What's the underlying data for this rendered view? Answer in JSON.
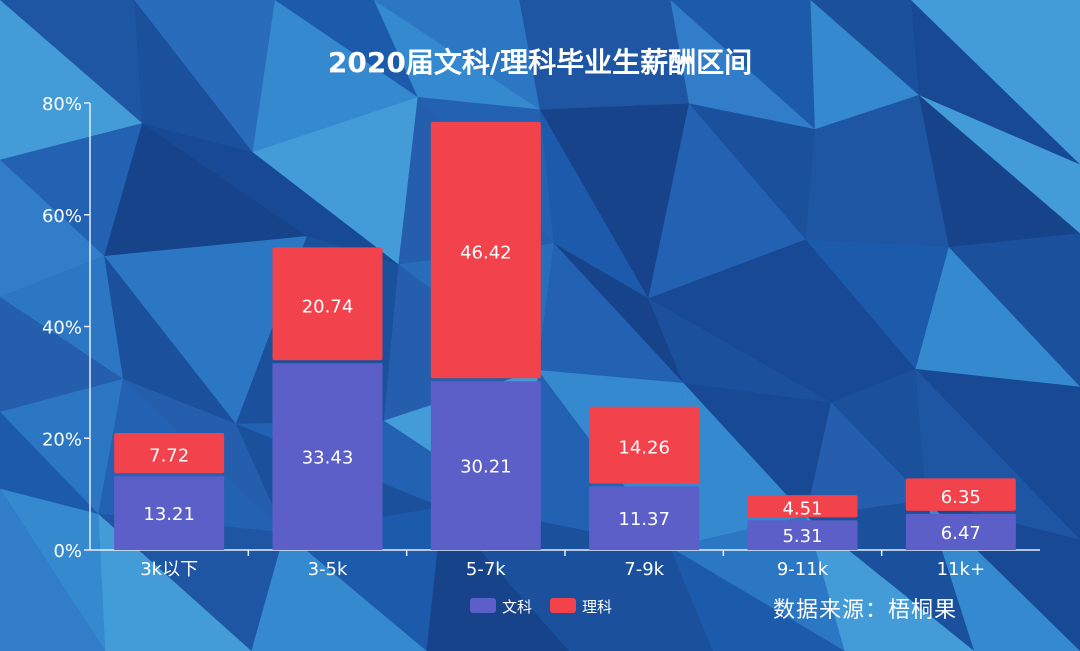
{
  "chart_data": {
    "type": "bar",
    "stacked": true,
    "title": "2020届文科/理科毕业生薪酬区间",
    "categories": [
      "3k以下",
      "3-5k",
      "5-7k",
      "7-9k",
      "9-11k",
      "11k+"
    ],
    "series": [
      {
        "name": "文科",
        "values": [
          13.21,
          33.43,
          30.21,
          11.37,
          5.31,
          6.47
        ],
        "color": "#5b5fc7"
      },
      {
        "name": "理科",
        "values": [
          7.72,
          20.74,
          46.42,
          14.26,
          4.51,
          6.35
        ],
        "color": "#f2424b"
      }
    ],
    "yticks": [
      "0%",
      "20%",
      "40%",
      "60%",
      "80%"
    ],
    "ylim": [
      0,
      80
    ],
    "legend_position": "bottom-center",
    "grid": false
  },
  "source_text": "数据来源：梧桐果",
  "colors": {
    "axis": "#e6eefb",
    "label_text": "#ffffff",
    "background": "#1b4f9a"
  }
}
